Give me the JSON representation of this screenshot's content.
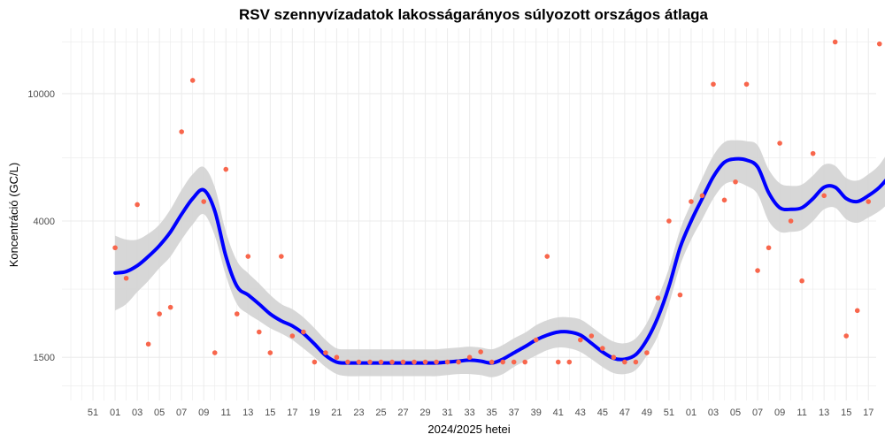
{
  "chart_data": {
    "type": "scatter",
    "title": "RSV szennyvízadatok lakosságarányos súlyozott országos átlaga",
    "xlabel": "2024/2025 hetei",
    "ylabel": "Koncentráció (GC/L)",
    "y_scale": "log",
    "ylim": [
      1100,
      16000
    ],
    "y_ticks": [
      1500,
      4000,
      10000
    ],
    "y_tick_labels": [
      "1500",
      "4000",
      "10000"
    ],
    "x_ticks": [
      "51",
      "01",
      "03",
      "05",
      "07",
      "09",
      "11",
      "13",
      "15",
      "17",
      "19",
      "21",
      "23",
      "25",
      "27",
      "29",
      "31",
      "33",
      "35",
      "37",
      "39",
      "41",
      "43",
      "45",
      "47",
      "49",
      "51",
      "01",
      "03",
      "05",
      "07",
      "09",
      "11",
      "13",
      "15",
      "17",
      "19",
      "21"
    ],
    "colors": {
      "points": "#f8664c",
      "trend": "#0000ff",
      "ribbon": "#d3d3d3",
      "grid": "#ebebeb"
    },
    "series": [
      {
        "type": "scatter",
        "points": [
          [
            "2024-01",
            3300
          ],
          [
            "2024-02",
            2650
          ],
          [
            "2024-03",
            4500
          ],
          [
            "2024-04",
            1650
          ],
          [
            "2024-05",
            2050
          ],
          [
            "2024-06",
            2150
          ],
          [
            "2024-07",
            7600
          ],
          [
            "2024-08",
            11000
          ],
          [
            "2024-09",
            4600
          ],
          [
            "2024-10",
            1550
          ],
          [
            "2024-11",
            5800
          ],
          [
            "2024-12",
            2050
          ],
          [
            "2024-13",
            3100
          ],
          [
            "2024-14",
            1800
          ],
          [
            "2024-15",
            1550
          ],
          [
            "2024-16",
            3100
          ],
          [
            "2024-17",
            1750
          ],
          [
            "2024-18",
            1800
          ],
          [
            "2024-19",
            1450
          ],
          [
            "2024-20",
            1550
          ],
          [
            "2024-21",
            1500
          ],
          [
            "2024-22",
            1450
          ],
          [
            "2024-23",
            1450
          ],
          [
            "2024-24",
            1450
          ],
          [
            "2024-25",
            1450
          ],
          [
            "2024-26",
            1450
          ],
          [
            "2024-27",
            1450
          ],
          [
            "2024-28",
            1450
          ],
          [
            "2024-29",
            1450
          ],
          [
            "2024-30",
            1450
          ],
          [
            "2024-31",
            1450
          ],
          [
            "2024-32",
            1450
          ],
          [
            "2024-33",
            1500
          ],
          [
            "2024-34",
            1560
          ],
          [
            "2024-35",
            1450
          ],
          [
            "2024-36",
            1450
          ],
          [
            "2024-37",
            1450
          ],
          [
            "2024-38",
            1450
          ],
          [
            "2024-39",
            1700
          ],
          [
            "2024-40",
            3100
          ],
          [
            "2024-41",
            1450
          ],
          [
            "2024-42",
            1450
          ],
          [
            "2024-43",
            1700
          ],
          [
            "2024-44",
            1750
          ],
          [
            "2024-45",
            1600
          ],
          [
            "2024-46",
            1500
          ],
          [
            "2024-47",
            1450
          ],
          [
            "2024-48",
            1450
          ],
          [
            "2024-49",
            1550
          ],
          [
            "2024-50",
            2300
          ],
          [
            "2024-51",
            4000
          ],
          [
            "2024-52",
            2350
          ],
          [
            "2025-01",
            4600
          ],
          [
            "2025-02",
            4800
          ],
          [
            "2025-03",
            10700
          ],
          [
            "2025-04",
            4650
          ],
          [
            "2025-05",
            5300
          ],
          [
            "2025-06",
            10700
          ],
          [
            "2025-07",
            2800
          ],
          [
            "2025-08",
            3300
          ],
          [
            "2025-09",
            7000
          ],
          [
            "2025-10",
            4000
          ],
          [
            "2025-11",
            2600
          ],
          [
            "2025-12",
            6500
          ],
          [
            "2025-13",
            4800
          ],
          [
            "2025-14",
            14500
          ],
          [
            "2025-15",
            1750
          ],
          [
            "2025-16",
            2100
          ],
          [
            "2025-17",
            4600
          ],
          [
            "2025-18",
            14300
          ]
        ]
      },
      {
        "type": "line",
        "name": "",
        "points": [
          [
            "2024-01",
            2750
          ],
          [
            "2024-02",
            2780
          ],
          [
            "2024-03",
            2900
          ],
          [
            "2024-04",
            3100
          ],
          [
            "2024-05",
            3350
          ],
          [
            "2024-06",
            3700
          ],
          [
            "2024-07",
            4200
          ],
          [
            "2024-08",
            4700
          ],
          [
            "2024-09",
            5000
          ],
          [
            "2024-10",
            4300
          ],
          [
            "2024-11",
            3100
          ],
          [
            "2024-12",
            2500
          ],
          [
            "2024-13",
            2350
          ],
          [
            "2024-14",
            2200
          ],
          [
            "2024-15",
            2050
          ],
          [
            "2024-16",
            1950
          ],
          [
            "2024-17",
            1880
          ],
          [
            "2024-18",
            1780
          ],
          [
            "2024-19",
            1650
          ],
          [
            "2024-20",
            1520
          ],
          [
            "2024-21",
            1450
          ],
          [
            "2024-22",
            1440
          ],
          [
            "2024-23",
            1440
          ],
          [
            "2024-24",
            1440
          ],
          [
            "2024-25",
            1440
          ],
          [
            "2024-26",
            1440
          ],
          [
            "2024-27",
            1440
          ],
          [
            "2024-28",
            1440
          ],
          [
            "2024-29",
            1440
          ],
          [
            "2024-30",
            1440
          ],
          [
            "2024-31",
            1450
          ],
          [
            "2024-32",
            1460
          ],
          [
            "2024-33",
            1470
          ],
          [
            "2024-34",
            1460
          ],
          [
            "2024-35",
            1440
          ],
          [
            "2024-36",
            1480
          ],
          [
            "2024-37",
            1550
          ],
          [
            "2024-38",
            1620
          ],
          [
            "2024-39",
            1700
          ],
          [
            "2024-40",
            1760
          ],
          [
            "2024-41",
            1800
          ],
          [
            "2024-42",
            1800
          ],
          [
            "2024-43",
            1760
          ],
          [
            "2024-44",
            1660
          ],
          [
            "2024-45",
            1560
          ],
          [
            "2024-46",
            1490
          ],
          [
            "2024-47",
            1480
          ],
          [
            "2024-48",
            1530
          ],
          [
            "2024-49",
            1700
          ],
          [
            "2024-50",
            2000
          ],
          [
            "2024-51",
            2500
          ],
          [
            "2024-52",
            3300
          ],
          [
            "2025-01",
            4000
          ],
          [
            "2025-02",
            4700
          ],
          [
            "2025-03",
            5500
          ],
          [
            "2025-04",
            6100
          ],
          [
            "2025-05",
            6250
          ],
          [
            "2025-06",
            6200
          ],
          [
            "2025-07",
            5900
          ],
          [
            "2025-08",
            4900
          ],
          [
            "2025-09",
            4400
          ],
          [
            "2025-10",
            4350
          ],
          [
            "2025-11",
            4400
          ],
          [
            "2025-12",
            4700
          ],
          [
            "2025-13",
            5100
          ],
          [
            "2025-14",
            5100
          ],
          [
            "2025-15",
            4700
          ],
          [
            "2025-16",
            4600
          ],
          [
            "2025-17",
            4800
          ],
          [
            "2025-18",
            5100
          ],
          [
            "2025-19",
            5600
          ],
          [
            "2025-20",
            6400
          ]
        ],
        "ci_lower": [
          2100,
          2200,
          2400,
          2600,
          2850,
          3100,
          3500,
          3900,
          4200,
          3600,
          2700,
          2200,
          2050,
          1950,
          1850,
          1780,
          1700,
          1600,
          1500,
          1400,
          1330,
          1310,
          1310,
          1310,
          1310,
          1310,
          1310,
          1310,
          1310,
          1310,
          1320,
          1330,
          1330,
          1320,
          1300,
          1330,
          1400,
          1460,
          1520,
          1580,
          1610,
          1600,
          1560,
          1480,
          1400,
          1340,
          1330,
          1370,
          1520,
          1750,
          2200,
          2900,
          3500,
          4050,
          4700,
          5200,
          5300,
          5150,
          4850,
          4000,
          3700,
          3700,
          3750,
          4000,
          4350,
          4400,
          4050,
          3950,
          4100,
          4300,
          4600,
          4900
        ],
        "ci_upper": [
          3600,
          3500,
          3500,
          3650,
          3900,
          4350,
          5000,
          5600,
          5900,
          5100,
          3700,
          3000,
          2750,
          2550,
          2350,
          2200,
          2120,
          2000,
          1850,
          1700,
          1600,
          1590,
          1590,
          1590,
          1590,
          1590,
          1590,
          1590,
          1590,
          1590,
          1600,
          1610,
          1620,
          1610,
          1590,
          1640,
          1720,
          1790,
          1890,
          1960,
          2000,
          2000,
          1970,
          1870,
          1760,
          1680,
          1660,
          1720,
          1920,
          2300,
          2850,
          3750,
          4550,
          5450,
          6400,
          7050,
          7150,
          7100,
          6900,
          5800,
          5250,
          5150,
          5200,
          5550,
          6000,
          5950,
          5450,
          5350,
          5600,
          6000,
          6800,
          8000
        ]
      }
    ],
    "grid": true
  }
}
